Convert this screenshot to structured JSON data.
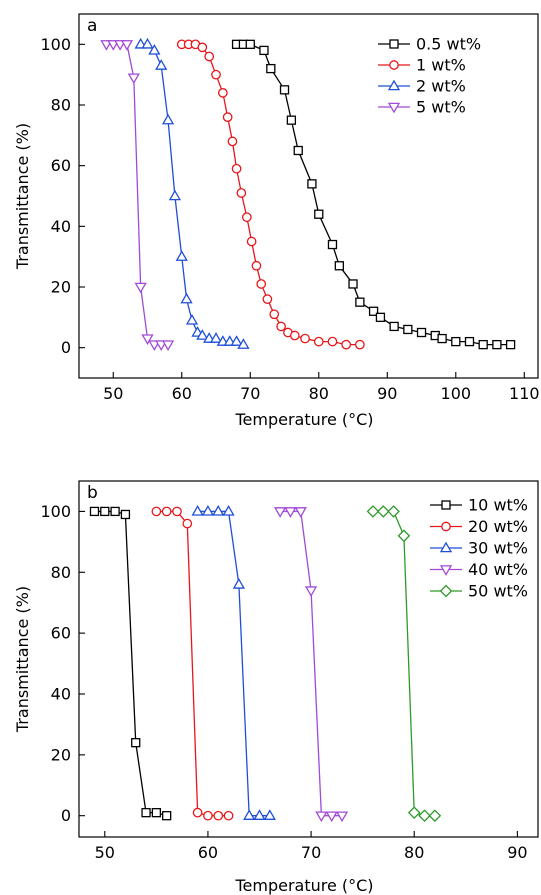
{
  "chart_data": [
    {
      "panel_label": "a",
      "type": "line",
      "xlabel": "Temperature (°C)",
      "ylabel": "Transmittance (%)",
      "xlim": [
        45,
        112
      ],
      "ylim": [
        -10,
        110
      ],
      "xticks": [
        50,
        60,
        70,
        80,
        90,
        100,
        110
      ],
      "yticks": [
        0,
        20,
        40,
        60,
        80,
        100
      ],
      "legend_position": "top-right",
      "series": [
        {
          "name": "0.5 wt%",
          "color": "#000000",
          "marker": "square",
          "x": [
            68,
            69,
            70,
            72,
            73,
            75,
            76,
            77,
            79,
            80,
            82,
            83,
            85,
            86,
            88,
            89,
            91,
            93,
            95,
            97,
            98,
            100,
            102,
            104,
            106,
            108
          ],
          "y": [
            100,
            100,
            100,
            98,
            92,
            85,
            75,
            65,
            54,
            44,
            34,
            27,
            21,
            15,
            12,
            10,
            7,
            6,
            5,
            4,
            3,
            2,
            2,
            1,
            1,
            1
          ]
        },
        {
          "name": "1 wt%",
          "color": "#e8161a",
          "marker": "circle",
          "x": [
            60,
            61,
            62,
            63,
            64,
            65,
            66,
            66.7,
            67.4,
            68,
            68.7,
            69.5,
            70.2,
            70.9,
            71.6,
            72.5,
            73.5,
            74.5,
            75.5,
            76.5,
            78,
            80,
            82,
            84,
            86
          ],
          "y": [
            100,
            100,
            100,
            99,
            96,
            90,
            84,
            76,
            68,
            59,
            51,
            43,
            35,
            27,
            21,
            16,
            11,
            7,
            5,
            4,
            3,
            2,
            2,
            1,
            1
          ],
          "note": null
        },
        {
          "name": "2 wt%",
          "color": "#1f4ed8",
          "marker": "triangle-up",
          "x": [
            54,
            55,
            56,
            57,
            58,
            59,
            60,
            60.7,
            61.5,
            62.3,
            63,
            64,
            65,
            66,
            67,
            68,
            69
          ],
          "y": [
            100,
            100,
            98,
            93,
            75,
            50,
            30,
            16,
            9,
            5,
            4,
            3,
            3,
            2,
            2,
            2,
            1
          ]
        },
        {
          "name": "5 wt%",
          "color": "#a24ad6",
          "marker": "triangle-down",
          "x": [
            49,
            50,
            51,
            52,
            53,
            54,
            55,
            56,
            57,
            58
          ],
          "y": [
            100,
            100,
            100,
            100,
            89,
            20,
            3,
            1,
            1,
            1
          ]
        }
      ]
    },
    {
      "panel_label": "b",
      "type": "line",
      "xlabel": "Temperature (°C)",
      "ylabel": "Transmittance (%)",
      "xlim": [
        47.5,
        92
      ],
      "ylim": [
        -7,
        110
      ],
      "xticks": [
        50,
        60,
        70,
        80,
        90
      ],
      "yticks": [
        0,
        20,
        40,
        60,
        80,
        100
      ],
      "legend_position": "top-right",
      "series": [
        {
          "name": "10 wt%",
          "color": "#000000",
          "marker": "square",
          "x": [
            49,
            50,
            51,
            52,
            53,
            54,
            55,
            56
          ],
          "y": [
            100,
            100,
            100,
            99,
            24,
            1,
            1,
            0
          ]
        },
        {
          "name": "20 wt%",
          "color": "#e8161a",
          "marker": "circle",
          "x": [
            55,
            56,
            57,
            58,
            59,
            60,
            61,
            62
          ],
          "y": [
            100,
            100,
            100,
            96,
            1,
            0,
            0,
            0
          ]
        },
        {
          "name": "30 wt%",
          "color": "#1f4ed8",
          "marker": "triangle-up",
          "x": [
            59,
            60,
            61,
            62,
            63,
            64,
            65,
            66
          ],
          "y": [
            100,
            100,
            100,
            100,
            76,
            0,
            0,
            0
          ]
        },
        {
          "name": "40 wt%",
          "color": "#a24ad6",
          "marker": "triangle-down",
          "x": [
            67,
            68,
            69,
            70,
            71,
            72,
            73
          ],
          "y": [
            100,
            100,
            100,
            74,
            0,
            0,
            0
          ]
        },
        {
          "name": "50 wt%",
          "color": "#2e9a2a",
          "marker": "diamond",
          "x": [
            76,
            77,
            78,
            79,
            80,
            81,
            82
          ],
          "y": [
            100,
            100,
            100,
            92,
            1,
            0,
            0
          ]
        }
      ]
    }
  ]
}
